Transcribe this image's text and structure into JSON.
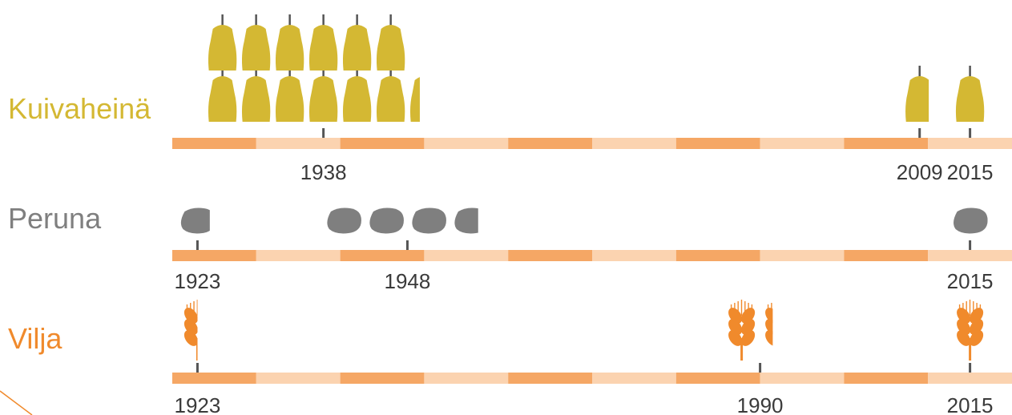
{
  "chart_data": [
    {
      "type": "pictogram",
      "icon": "hay",
      "title": "Kuivaheinä",
      "color": "#d4b833",
      "x": [
        1938,
        2009,
        2015
      ],
      "values": [
        12.35,
        0.8,
        1
      ],
      "xlim": [
        1920,
        2020
      ]
    },
    {
      "type": "pictogram",
      "icon": "potato",
      "title": "Peruna",
      "color": "#7f7f7f",
      "x": [
        1923,
        1948,
        2015
      ],
      "values": [
        0.85,
        3.7,
        1
      ],
      "xlim": [
        1920,
        2020
      ]
    },
    {
      "type": "pictogram",
      "icon": "wheat",
      "title": "Vilja",
      "color": "#f08a2c",
      "x": [
        1923,
        1990,
        2015
      ],
      "values": [
        0.5,
        1.3,
        1
      ],
      "xlim": [
        1920,
        2020
      ]
    }
  ]
}
